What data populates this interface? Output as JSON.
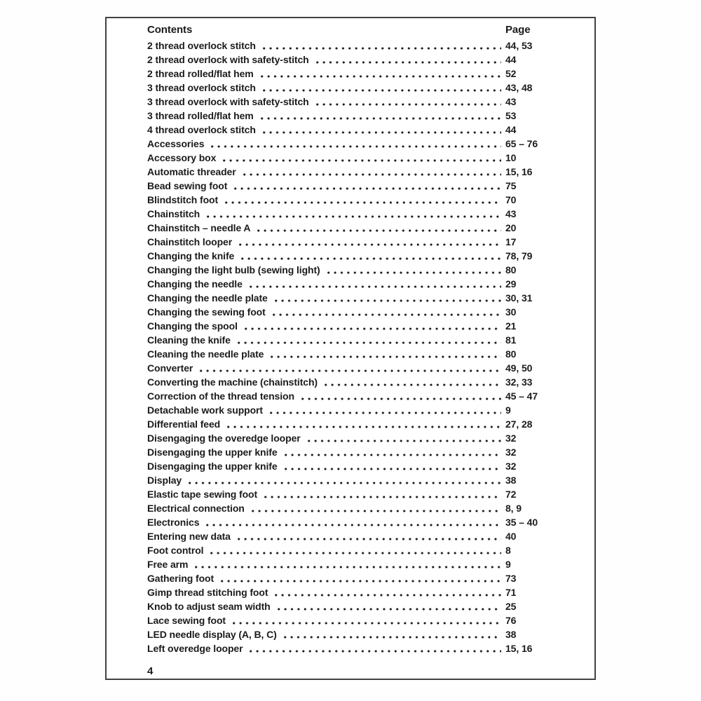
{
  "colors": {
    "text": "#1b1b1b",
    "border": "#424242",
    "background": "#ffffff"
  },
  "toc": {
    "header": {
      "contents_label": "Contents",
      "page_label": "Page"
    },
    "entries": [
      {
        "title": "2 thread overlock stitch",
        "page": "44, 53"
      },
      {
        "title": "2 thread overlock with safety-stitch",
        "page": "44"
      },
      {
        "title": "2 thread rolled/flat hem",
        "page": "52"
      },
      {
        "title": "3 thread overlock stitch",
        "page": "43, 48"
      },
      {
        "title": "3 thread overlock with safety-stitch",
        "page": "43"
      },
      {
        "title": "3 thread rolled/flat hem",
        "page": "53"
      },
      {
        "title": "4 thread overlock stitch",
        "page": "44"
      },
      {
        "title": "Accessories",
        "page": "65 – 76"
      },
      {
        "title": "Accessory box",
        "page": "10"
      },
      {
        "title": "Automatic threader",
        "page": "15, 16"
      },
      {
        "title": "Bead sewing foot",
        "page": "75"
      },
      {
        "title": "Blindstitch foot",
        "page": "70"
      },
      {
        "title": "Chainstitch",
        "page": "43"
      },
      {
        "title": "Chainstitch – needle A",
        "page": "20"
      },
      {
        "title": "Chainstitch looper",
        "page": "17"
      },
      {
        "title": "Changing the knife",
        "page": "78, 79"
      },
      {
        "title": "Changing the light bulb (sewing light)",
        "page": "80"
      },
      {
        "title": "Changing the needle",
        "page": "29"
      },
      {
        "title": "Changing the needle plate",
        "page": "30, 31"
      },
      {
        "title": "Changing the sewing foot",
        "page": "30"
      },
      {
        "title": "Changing the spool",
        "page": "21"
      },
      {
        "title": "Cleaning the knife",
        "page": "81"
      },
      {
        "title": "Cleaning the needle plate",
        "page": "80"
      },
      {
        "title": "Converter",
        "page": "49, 50"
      },
      {
        "title": "Converting the machine (chainstitch)",
        "page": "32, 33"
      },
      {
        "title": "Correction of the thread tension",
        "page": "45 – 47"
      },
      {
        "title": "Detachable work support",
        "page": "9"
      },
      {
        "title": "Differential feed",
        "page": "27, 28"
      },
      {
        "title": "Disengaging the overedge looper",
        "page": "32"
      },
      {
        "title": "Disengaging the upper knife",
        "page": "32"
      },
      {
        "title": "Disengaging the upper knife",
        "page": "32"
      },
      {
        "title": "Display",
        "page": "38"
      },
      {
        "title": "Elastic tape sewing foot",
        "page": "72"
      },
      {
        "title": "Electrical connection",
        "page": "8, 9"
      },
      {
        "title": "Electronics",
        "page": "35 – 40"
      },
      {
        "title": "Entering new data",
        "page": "40"
      },
      {
        "title": "Foot control",
        "page": "8"
      },
      {
        "title": "Free arm",
        "page": "9"
      },
      {
        "title": "Gathering foot",
        "page": "73"
      },
      {
        "title": "Gimp thread stitching foot",
        "page": "71"
      },
      {
        "title": "Knob to adjust seam width",
        "page": "25"
      },
      {
        "title": "Lace sewing foot",
        "page": "76"
      },
      {
        "title": "LED needle display (A, B, C)",
        "page": "38"
      },
      {
        "title": "Left overedge looper",
        "page": "15, 16"
      }
    ],
    "footer_page_number": "4"
  }
}
